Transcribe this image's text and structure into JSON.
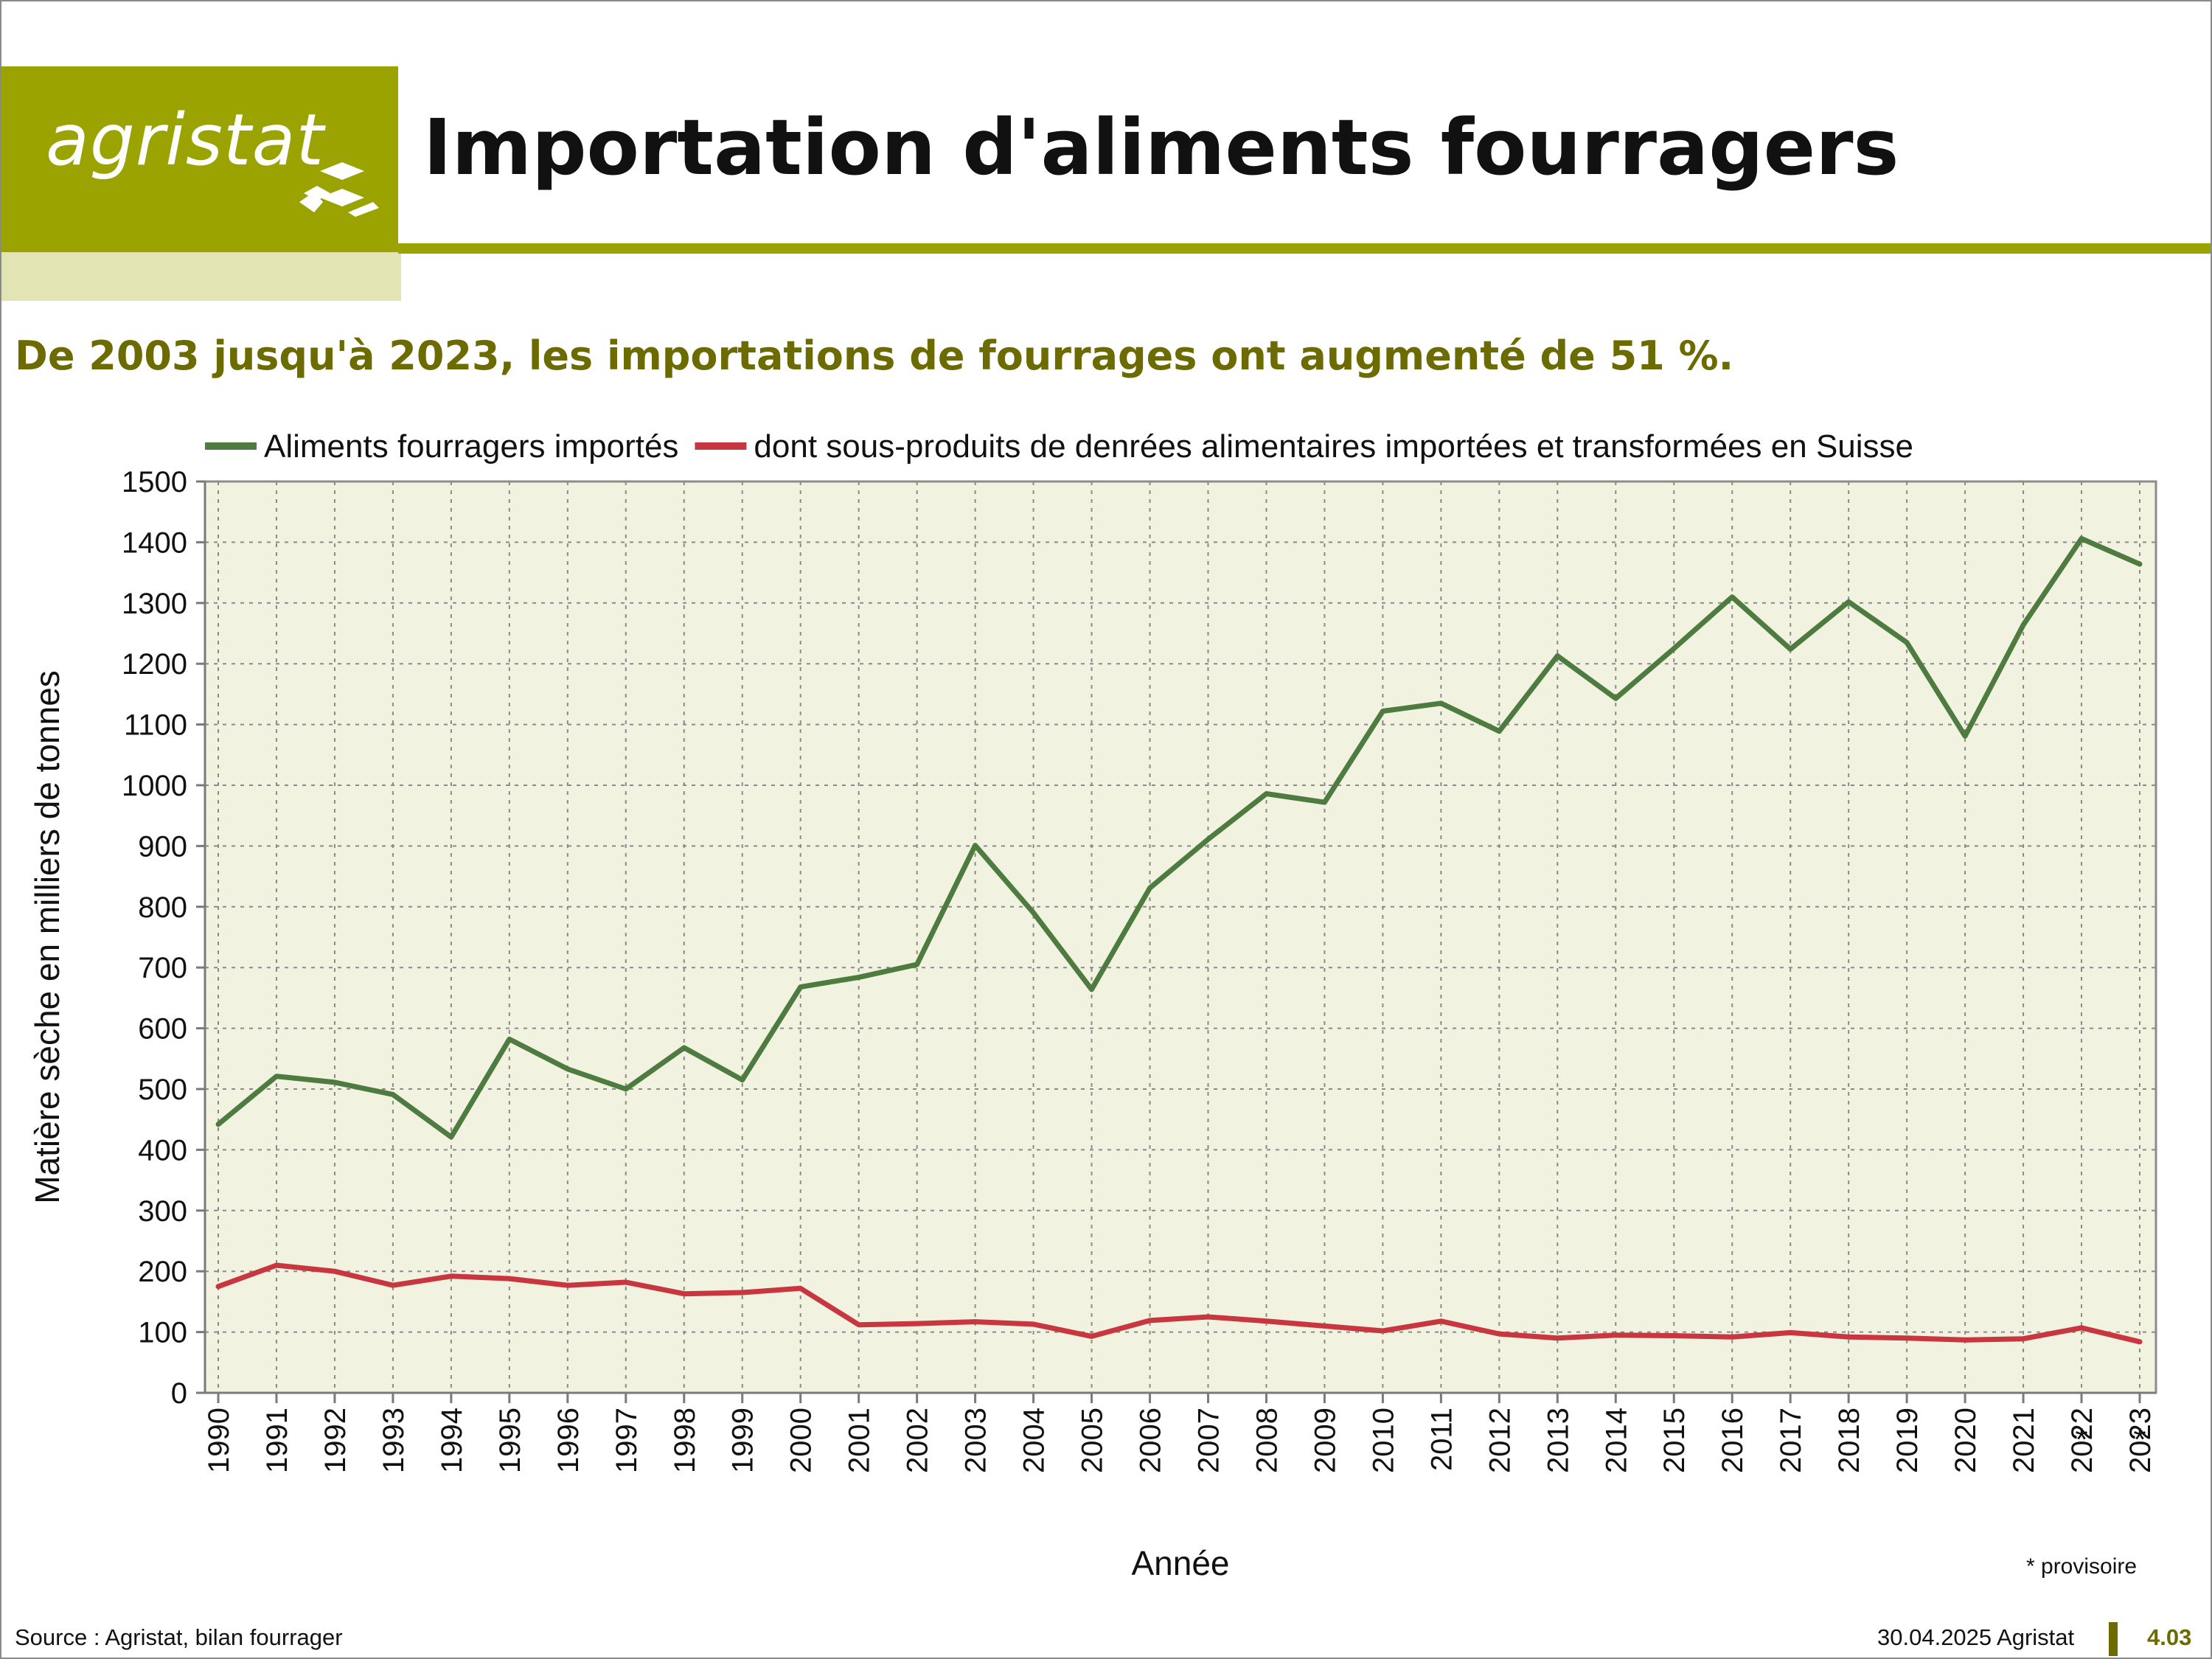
{
  "header": {
    "logo_text": "agristat",
    "title": "Importation d'aliments fourragers",
    "subtitle": "De 2003 jusqu'à 2023, les importations de fourrages ont augmenté de 51 %."
  },
  "footer": {
    "source": "Source : Agristat, bilan fourrager",
    "date": "30.04.2025 Agristat",
    "page": "4.03",
    "note": "* provisoire"
  },
  "colors": {
    "brand": "#9aa300",
    "brand_light": "#e2e5b3",
    "plot_bg": "#f2f2e1",
    "series_green": "#4e7b3f",
    "series_red": "#c8363f"
  },
  "chart_data": {
    "type": "line",
    "xlabel": "Année",
    "ylabel": "Matière sèche en milliers de tonnes",
    "ylim": [
      0,
      1500
    ],
    "yticks": [
      0,
      100,
      200,
      300,
      400,
      500,
      600,
      700,
      800,
      900,
      1000,
      1100,
      1200,
      1300,
      1400,
      1500
    ],
    "grid": true,
    "legend_position": "top",
    "categories": [
      "1990",
      "1991",
      "1992",
      "1993",
      "1994",
      "1995",
      "1996",
      "1997",
      "1998",
      "1999",
      "2000",
      "2001",
      "2002",
      "2003",
      "2004",
      "2005",
      "2006",
      "2007",
      "2008",
      "2009",
      "2010",
      "2011",
      "2012",
      "2013",
      "2014",
      "2015",
      "2016",
      "2017",
      "2018",
      "2019",
      "2020",
      "2021",
      "2022",
      "2023"
    ],
    "provisional_marker": "*",
    "provisional_categories": [
      "2022",
      "2023"
    ],
    "series": [
      {
        "name": "Aliments fourragers importés",
        "color": "#4e7b3f",
        "values": [
          442,
          521,
          511,
          491,
          421,
          582,
          533,
          500,
          568,
          515,
          668,
          684,
          705,
          901,
          790,
          664,
          831,
          911,
          986,
          972,
          1122,
          1135,
          1089,
          1213,
          1143,
          1225,
          1310,
          1224,
          1302,
          1235,
          1081,
          1264,
          1406,
          1364
        ]
      },
      {
        "name": "dont sous-produits de denrées alimentaires importées et transformées en Suisse",
        "color": "#c8363f",
        "values": [
          175,
          210,
          200,
          177,
          192,
          188,
          177,
          182,
          163,
          165,
          172,
          112,
          114,
          117,
          113,
          93,
          119,
          125,
          118,
          110,
          102,
          118,
          97,
          90,
          95,
          94,
          92,
          99,
          92,
          90,
          87,
          89,
          107,
          84
        ]
      }
    ]
  }
}
